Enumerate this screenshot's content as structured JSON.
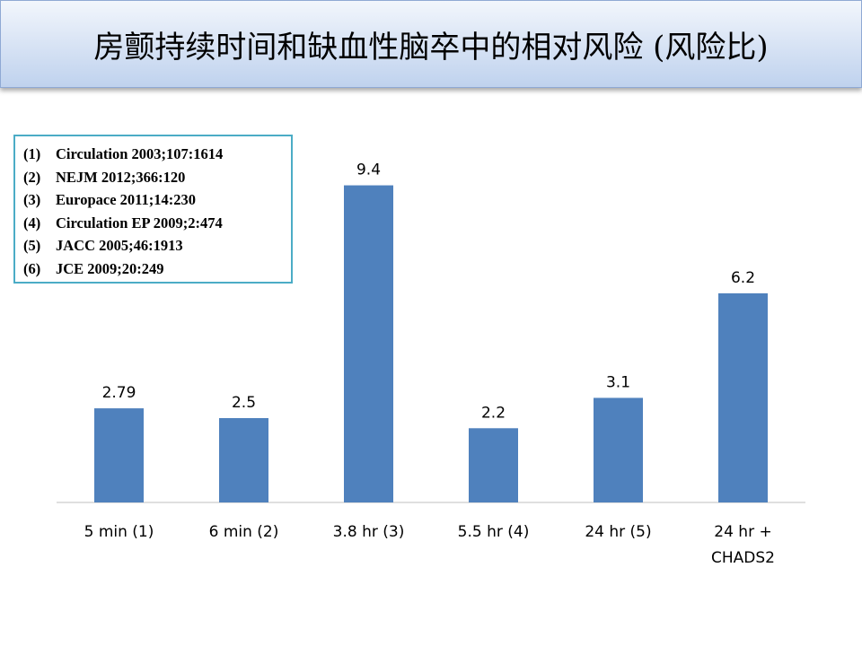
{
  "slide": {
    "title": "房颤持续时间和缺血性脑卒中的相对风险 (风险比)"
  },
  "references": [
    {
      "num": "(1)",
      "text": "Circulation 2003;107:1614"
    },
    {
      "num": "(2)",
      "text": "NEJM 2012;366:120"
    },
    {
      "num": "(3)",
      "text": "Europace 2011;14:230"
    },
    {
      "num": "(4)",
      "text": "Circulation EP 2009;2:474"
    },
    {
      "num": "(5)",
      "text": "JACC 2005;46:1913"
    },
    {
      "num": "(6)",
      "text": "JCE 2009;20:249"
    }
  ],
  "colors": {
    "bar": "#4f81bd",
    "axis": "#bfbfbf",
    "title_bg": "#c6d9f1",
    "ref_border": "#4bacc6"
  },
  "chart_data": {
    "type": "bar",
    "categories": [
      [
        "5 min (1)"
      ],
      [
        "6 min (2)"
      ],
      [
        "3.8 hr (3)"
      ],
      [
        "5.5 hr (4)"
      ],
      [
        "24 hr (5)"
      ],
      [
        "24 hr +",
        "CHADS2"
      ]
    ],
    "values": [
      2.79,
      2.5,
      9.4,
      2.2,
      3.1,
      6.2
    ],
    "data_labels": [
      "2.79",
      "2.5",
      "9.4",
      "2.2",
      "3.1",
      "6.2"
    ],
    "ylim": [
      0,
      10
    ],
    "grid": false,
    "legend": "none"
  }
}
